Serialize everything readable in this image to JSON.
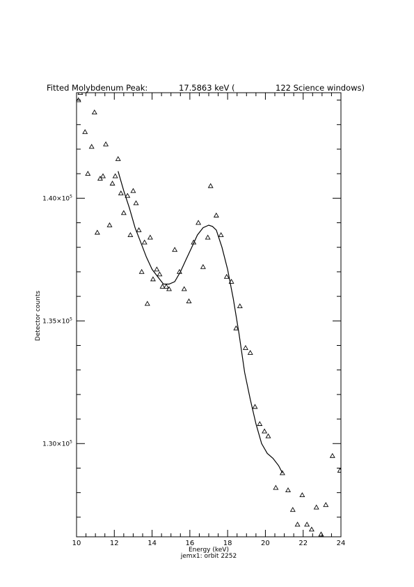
{
  "header": {
    "prefix": "Fitted Molybdenum Peak:",
    "energy": "17.5863 keV (",
    "windows": "122 Science windows)"
  },
  "footer": {
    "subtitle": "jemx1: orbit 2252"
  },
  "chart_data": {
    "type": "scatter",
    "xlabel": "Energy (keV)",
    "ylabel": "Detector counts",
    "xlim": [
      10,
      24
    ],
    "ylim": [
      126200,
      144300
    ],
    "x_ticks": [
      {
        "value": 10,
        "label": "10"
      },
      {
        "value": 12,
        "label": "12"
      },
      {
        "value": 14,
        "label": "14"
      },
      {
        "value": 16,
        "label": "16"
      },
      {
        "value": 18,
        "label": "18"
      },
      {
        "value": 20,
        "label": "20"
      },
      {
        "value": 22,
        "label": "22"
      },
      {
        "value": 24,
        "label": "24"
      }
    ],
    "y_ticks": [
      {
        "value": 130000,
        "mantissa": "1.30",
        "exponent": "5"
      },
      {
        "value": 135000,
        "mantissa": "1.35",
        "exponent": "5"
      },
      {
        "value": 140000,
        "mantissa": "1.40",
        "exponent": "5"
      }
    ],
    "x_minor_step": 0.5,
    "y_minor_step": 1000,
    "series": [
      {
        "kind": "points",
        "marker": "triangle",
        "x": [
          10.1,
          10.2,
          10.45,
          10.6,
          10.8,
          10.95,
          11.1,
          11.25,
          11.4,
          11.55,
          11.75,
          11.9,
          12.05,
          12.2,
          12.35,
          12.5,
          12.7,
          12.85,
          13.0,
          13.15,
          13.3,
          13.45,
          13.6,
          13.75,
          13.9,
          14.05,
          14.25,
          14.4,
          14.55,
          14.75,
          14.9,
          15.2,
          15.45,
          15.7,
          15.95,
          16.2,
          16.45,
          16.7,
          16.95,
          17.1,
          17.4,
          17.65,
          17.95,
          18.2,
          18.45,
          18.65,
          18.95,
          19.2,
          19.45,
          19.7,
          19.95,
          20.15,
          20.55,
          20.9,
          21.2,
          21.45,
          21.7,
          21.95,
          22.2,
          22.45,
          22.7,
          22.95,
          23.2,
          23.55,
          23.95
        ],
        "y": [
          144000,
          144300,
          142700,
          141000,
          142100,
          143500,
          138600,
          140800,
          140900,
          142200,
          138900,
          140600,
          140900,
          141600,
          140200,
          139400,
          140100,
          138500,
          140300,
          139800,
          138700,
          137000,
          138200,
          135700,
          138400,
          136700,
          137100,
          136900,
          136400,
          136400,
          136300,
          137900,
          137000,
          136300,
          135800,
          138200,
          139000,
          137200,
          138400,
          140500,
          139300,
          138500,
          136800,
          136600,
          134700,
          135600,
          133900,
          133700,
          131500,
          130800,
          130500,
          130300,
          128200,
          128800,
          128100,
          127300,
          126700,
          127900,
          126700,
          126500,
          127400,
          126300,
          127500,
          129500,
          128900
        ]
      },
      {
        "kind": "fit",
        "x": [
          12.2,
          12.5,
          12.8,
          13.1,
          13.4,
          13.7,
          14.0,
          14.3,
          14.6,
          14.9,
          15.2,
          15.5,
          15.8,
          16.1,
          16.4,
          16.7,
          17.0,
          17.2,
          17.4,
          17.7,
          18.0,
          18.3,
          18.6,
          18.9,
          19.2,
          19.5,
          19.8,
          20.1,
          20.4,
          20.7,
          20.9
        ],
        "y": [
          141100,
          140300,
          139600,
          138800,
          138200,
          137600,
          137100,
          136800,
          136500,
          136500,
          136600,
          137000,
          137500,
          138000,
          138500,
          138800,
          138900,
          138850,
          138700,
          138000,
          137100,
          135900,
          134500,
          132900,
          131800,
          130800,
          130000,
          129600,
          129400,
          129100,
          128800
        ]
      }
    ]
  }
}
